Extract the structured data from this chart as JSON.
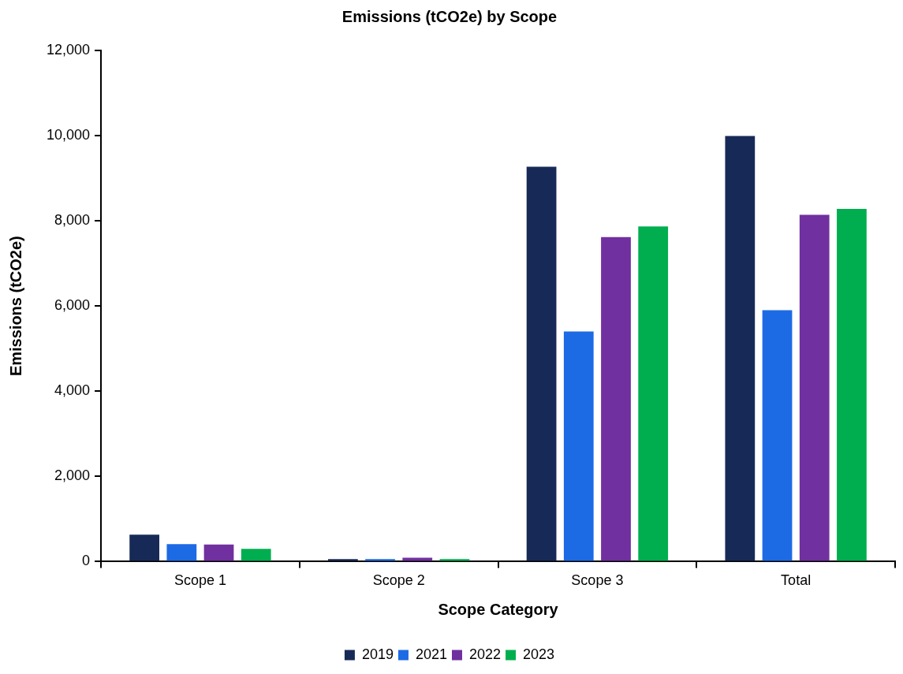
{
  "chart_data": {
    "type": "bar",
    "title": "Emissions (tCO2e) by Scope",
    "xlabel": "Scope Category",
    "ylabel": "Emissions (tCO2e)",
    "categories": [
      "Scope 1",
      "Scope 2",
      "Scope 3",
      "Total"
    ],
    "series": [
      {
        "name": "2019",
        "color": "#172a57",
        "values": [
          630,
          60,
          9270,
          9990
        ]
      },
      {
        "name": "2021",
        "color": "#1d6ae5",
        "values": [
          410,
          60,
          5400,
          5900
        ]
      },
      {
        "name": "2022",
        "color": "#70309f",
        "values": [
          400,
          90,
          7620,
          8140
        ]
      },
      {
        "name": "2023",
        "color": "#00ae4f",
        "values": [
          300,
          60,
          7870,
          8280
        ]
      }
    ],
    "ylim": [
      0,
      12000
    ],
    "yticks": [
      {
        "value": 0,
        "label": "0"
      },
      {
        "value": 2000,
        "label": "2,000"
      },
      {
        "value": 4000,
        "label": "4,000"
      },
      {
        "value": 6000,
        "label": "6,000"
      },
      {
        "value": 8000,
        "label": "8,000"
      },
      {
        "value": 10000,
        "label": "10,000"
      },
      {
        "value": 12000,
        "label": "12,000"
      }
    ],
    "grid": false,
    "legend": "bottom"
  }
}
